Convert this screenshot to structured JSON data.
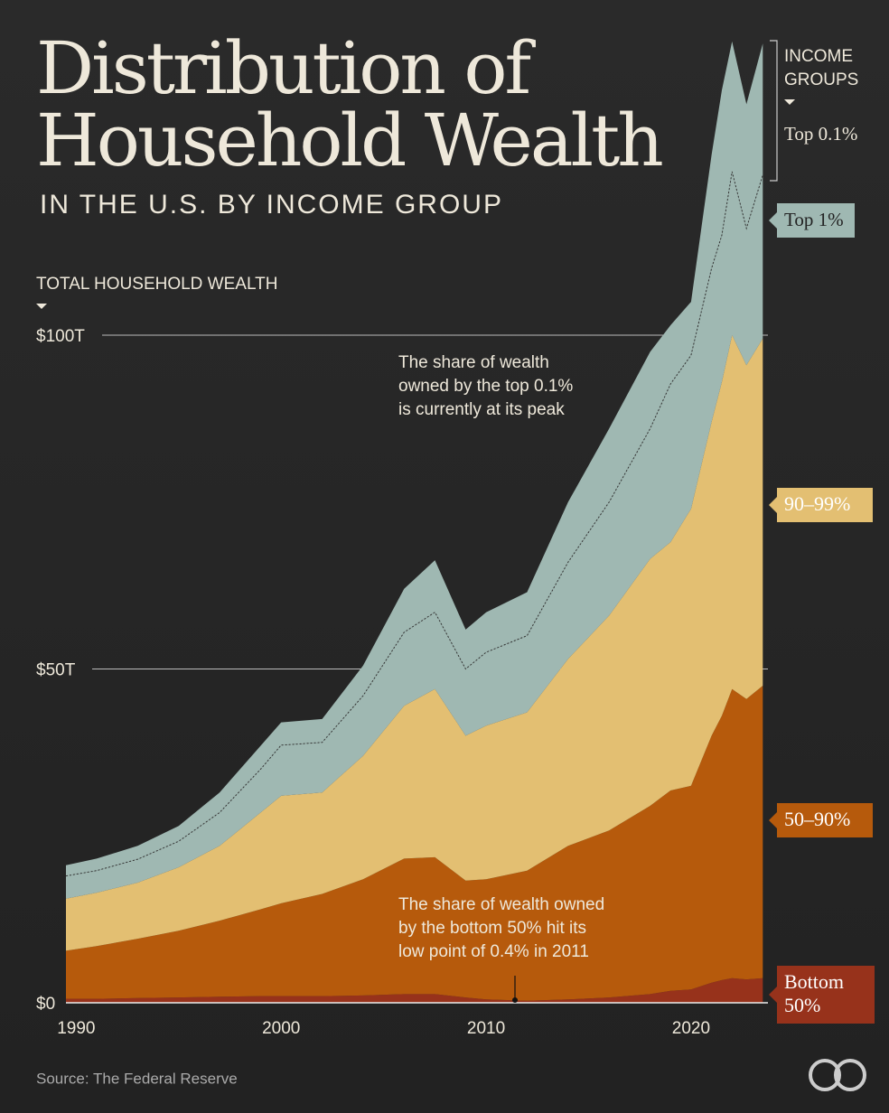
{
  "chart_data": {
    "type": "stacked-area",
    "title": [
      "Distribution of",
      "Household Wealth"
    ],
    "subtitle": "IN THE U.S. BY INCOME GROUP",
    "y_label": "TOTAL HOUSEHOLD WEALTH",
    "legend_title": [
      "INCOME",
      "GROUPS"
    ],
    "source": "Source: The Federal Reserve",
    "annotations": [
      {
        "lines": [
          "The share of wealth",
          "owned by the top 0.1%",
          "is currently at its peak"
        ]
      },
      {
        "lines": [
          "The share of wealth owned",
          "by the bottom 50% hit its",
          "low point of 0.4% in 2011"
        ]
      }
    ],
    "x": [
      1989.5,
      1991,
      1993,
      1995,
      1997,
      1999,
      2000,
      2002,
      2004,
      2006,
      2007.5,
      2009,
      2010,
      2012,
      2014,
      2016,
      2018,
      2019,
      2020,
      2021,
      2021.5,
      2022,
      2022.7,
      2023.5
    ],
    "series": [
      {
        "name": "Bottom 50%",
        "color": "#97321b",
        "values": [
          0.6,
          0.6,
          0.7,
          0.8,
          0.9,
          1.0,
          1.0,
          1.0,
          1.1,
          1.3,
          1.3,
          0.8,
          0.5,
          0.3,
          0.5,
          0.8,
          1.3,
          1.8,
          2.0,
          3.0,
          3.4,
          3.7,
          3.5,
          3.7
        ]
      },
      {
        "name": "50–90%",
        "color": "#b65a0c",
        "values": [
          7.2,
          7.9,
          8.9,
          10.0,
          11.4,
          13.0,
          13.9,
          15.3,
          17.4,
          20.3,
          20.5,
          17.5,
          18.0,
          19.5,
          23.0,
          25.0,
          28.2,
          30.0,
          30.5,
          37.0,
          39.6,
          43.3,
          42.0,
          43.8
        ]
      },
      {
        "name": "90–99%",
        "color": "#e3bf72",
        "values": [
          7.8,
          8.0,
          8.4,
          9.5,
          11.2,
          14.5,
          16.1,
          15.2,
          18.5,
          22.9,
          25.2,
          21.7,
          23.0,
          23.7,
          28.0,
          32.2,
          37.0,
          37.2,
          41.5,
          47.0,
          50.0,
          53.0,
          50.0,
          52.0
        ]
      },
      {
        "name": "Top 1%",
        "color": "#9fb8b2",
        "values": [
          3.4,
          3.3,
          3.5,
          3.9,
          5.0,
          6.5,
          7.6,
          7.5,
          9.0,
          11.0,
          11.5,
          10.0,
          11.0,
          11.5,
          14.5,
          17.0,
          19.5,
          23.7,
          23.0,
          23.0,
          22.0,
          24.5,
          20.5,
          24.5
        ]
      },
      {
        "name": "Top 0.1%",
        "color": "#9fb8b2",
        "values": [
          1.6,
          1.8,
          2.0,
          2.3,
          3.0,
          3.5,
          3.4,
          3.5,
          4.5,
          6.5,
          7.8,
          5.9,
          6.0,
          6.5,
          9.0,
          11.0,
          11.5,
          8.8,
          8.0,
          17.0,
          21.7,
          19.5,
          18.6,
          19.7
        ]
      }
    ],
    "xlim": [
      1989.5,
      2023.75
    ],
    "xticks": [
      1990,
      2000,
      2010,
      2020
    ],
    "ylim": [
      0,
      145
    ],
    "yticks": [
      {
        "value": 0,
        "label": "$0"
      },
      {
        "value": 50,
        "label": "$50T"
      },
      {
        "value": 100,
        "label": "$100T"
      }
    ],
    "grid": true
  }
}
